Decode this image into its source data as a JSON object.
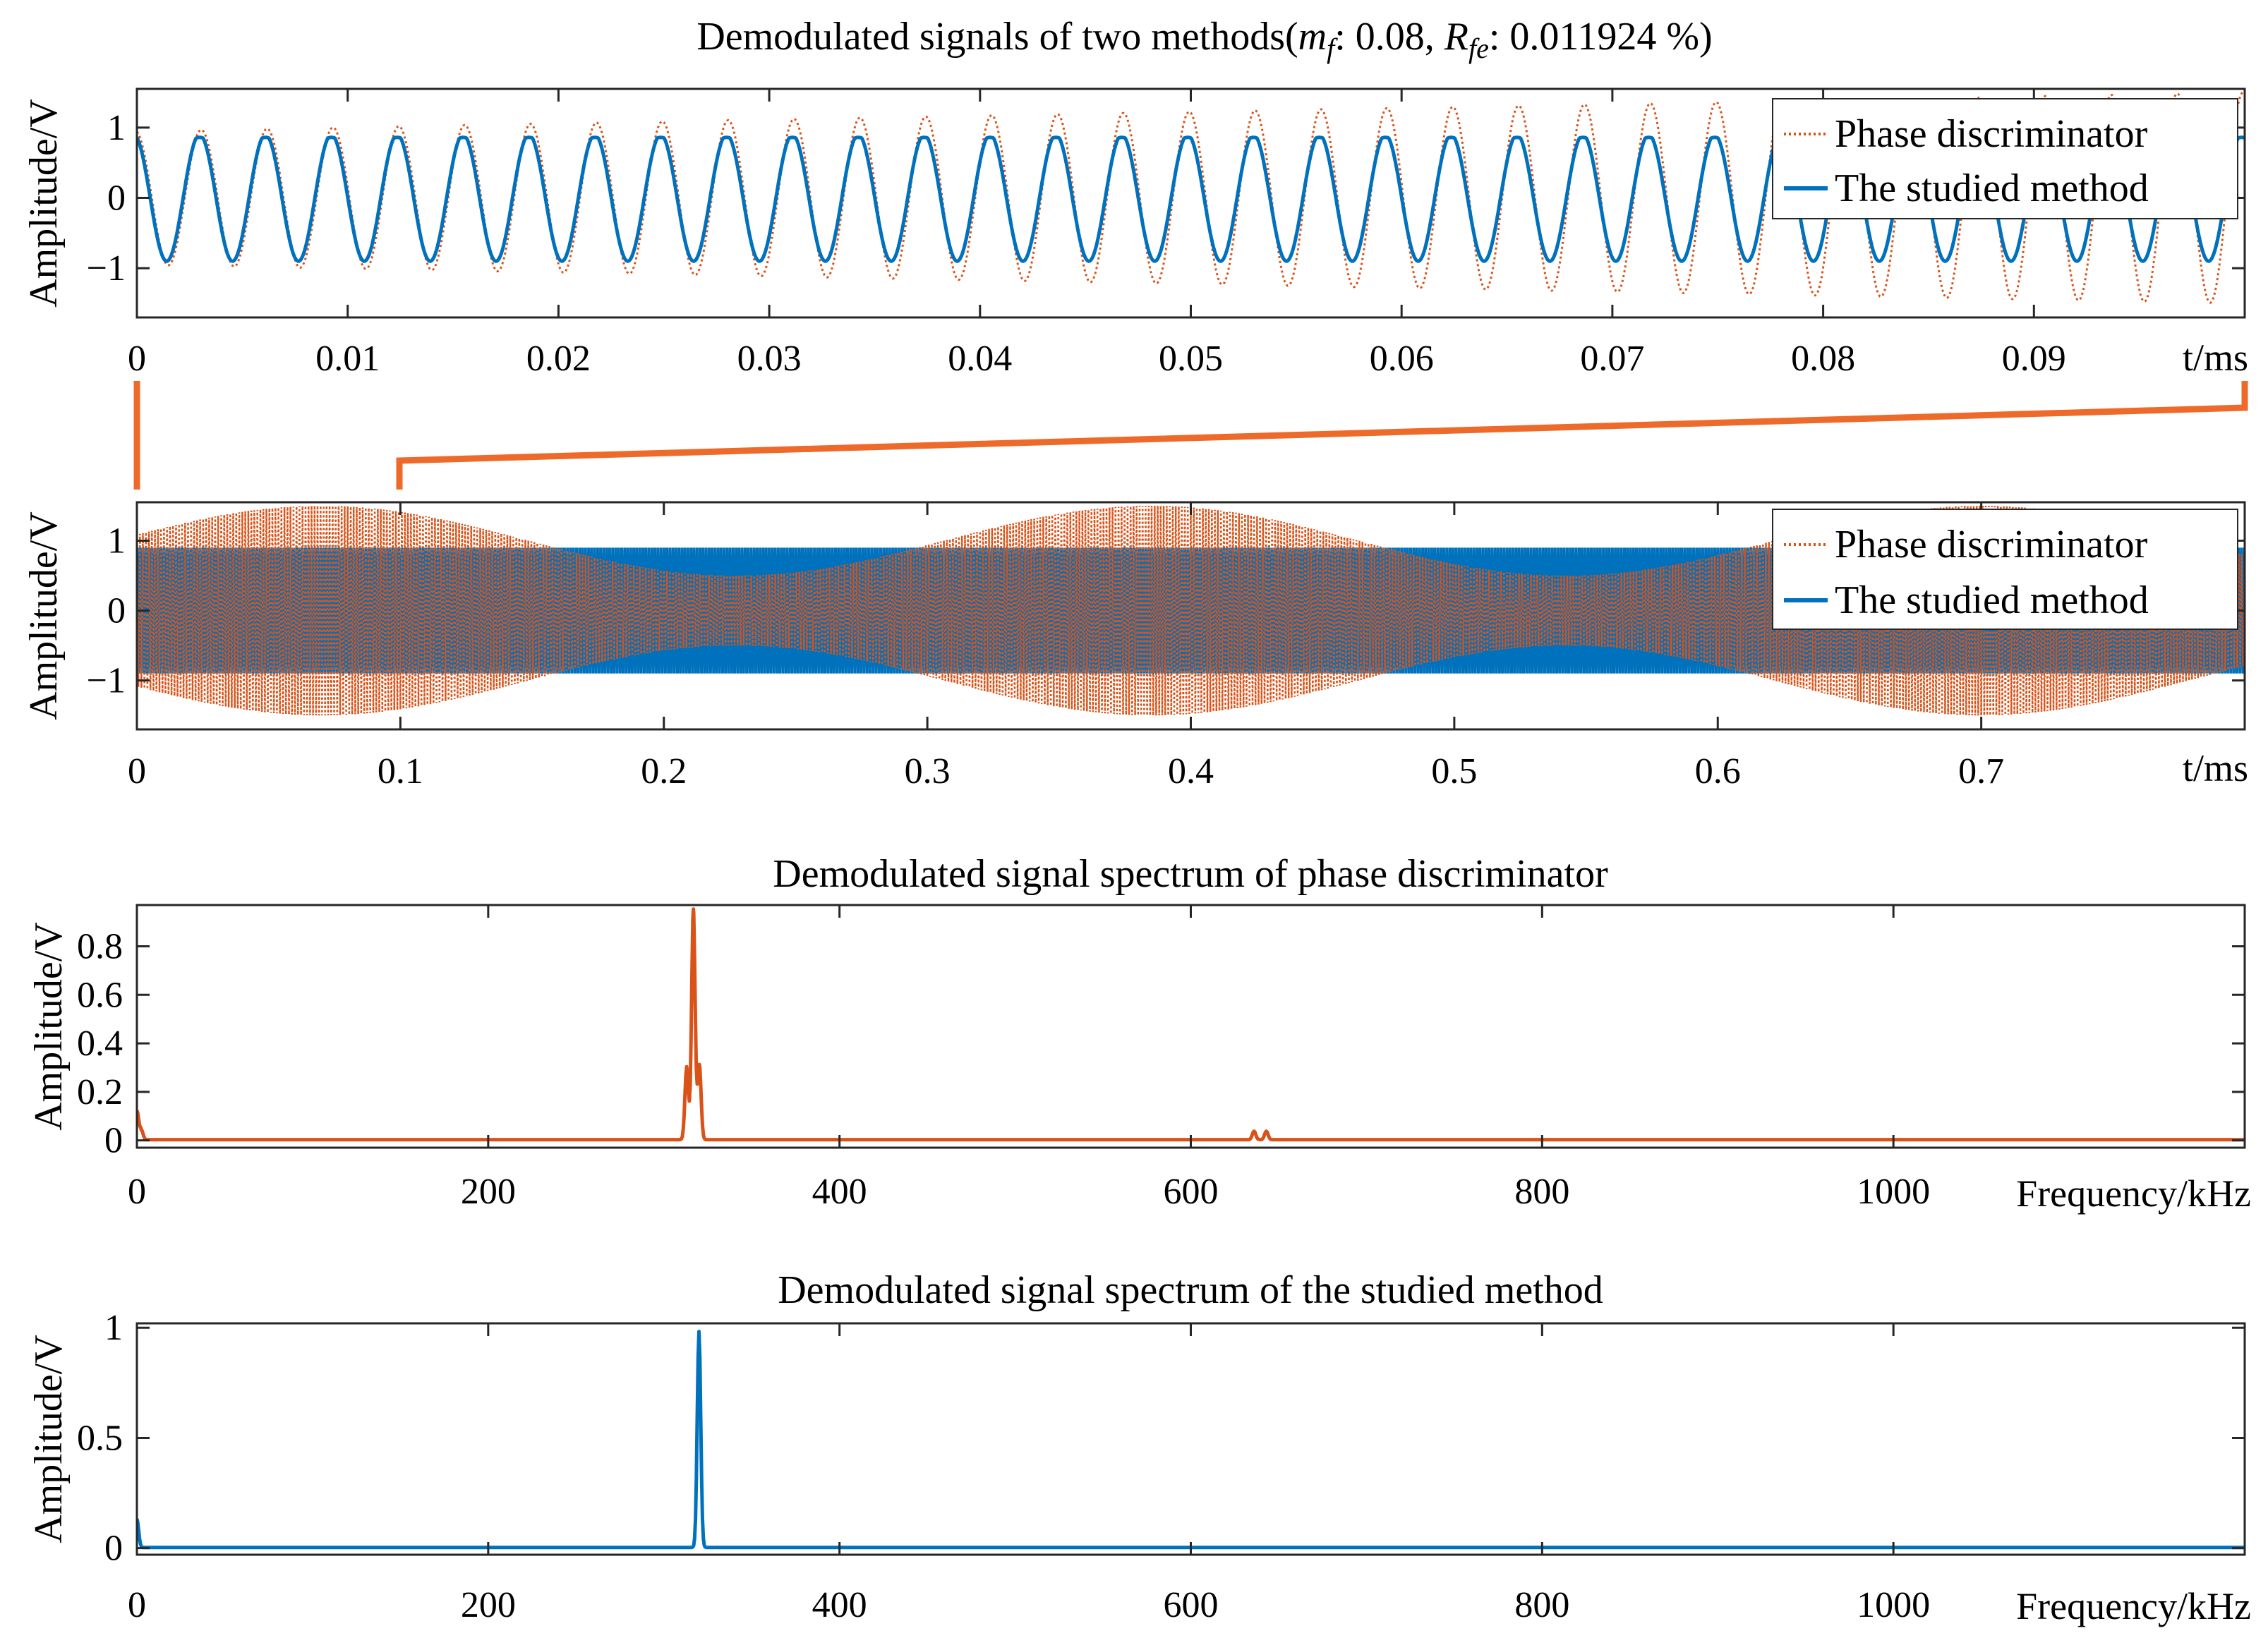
{
  "colors": {
    "phase": "#D95319",
    "studied": "#0072BD",
    "axis": "#262626",
    "connector": "#EE6A2B"
  },
  "chart_data": [
    {
      "id": "zoom",
      "type": "line",
      "title_prefix": "Demodulated signals of two methods(",
      "mf_sym": "m",
      "mf_sub": "f",
      "mf_val": ": 0.08, ",
      "rfe_sym": "R",
      "rfe_sub": "fe",
      "rfe_val": ": 0.011924  %)",
      "ylabel": "Amplitude/V",
      "xunit": "t/ms",
      "xlim": [
        0,
        0.1
      ],
      "ylim": [
        -1.7,
        1.55
      ],
      "xticks": [
        0,
        0.01,
        0.02,
        0.03,
        0.04,
        0.05,
        0.06,
        0.07,
        0.08,
        0.09
      ],
      "xtick_labels": [
        "0",
        "0.01",
        "0.02",
        "0.03",
        "0.04",
        "0.05",
        "0.06",
        "0.07",
        "0.08",
        "0.09"
      ],
      "yticks": [
        -1,
        0,
        1
      ],
      "ytick_labels": [
        "−1",
        "0",
        "1"
      ],
      "legend": [
        "Phase discriminator",
        "The studied method"
      ],
      "series": [
        {
          "name": "Phase discriminator",
          "style": "dotted",
          "carrier_khz": 320,
          "amplitude_base": 1.0,
          "amplitude_dev": 0.5,
          "mod_khz": 3.2,
          "mod_phase_deg": 180
        },
        {
          "name": "The studied method",
          "style": "solid",
          "carrier_khz": 320,
          "amplitude": 0.9,
          "peak_clip": 0.85
        }
      ]
    },
    {
      "id": "full",
      "type": "line",
      "ylabel": "Amplitude/V",
      "xunit": "t/ms",
      "xlim": [
        0,
        0.8
      ],
      "ylim": [
        -1.7,
        1.55
      ],
      "xticks": [
        0,
        0.1,
        0.2,
        0.3,
        0.4,
        0.5,
        0.6,
        0.7
      ],
      "xtick_labels": [
        "0",
        "0.1",
        "0.2",
        "0.3",
        "0.4",
        "0.5",
        "0.6",
        "0.7"
      ],
      "yticks": [
        -1,
        0,
        1
      ],
      "ytick_labels": [
        "−1",
        "0",
        "1"
      ],
      "legend": [
        "Phase discriminator",
        "The studied method"
      ],
      "series": [
        {
          "name": "Phase discriminator",
          "style": "dotted",
          "envelope_min": 0.5,
          "envelope_max": 1.5,
          "envelope_peaks_ms": [
            0.07,
            0.385,
            0.7
          ]
        },
        {
          "name": "The studied method",
          "style": "solid",
          "amplitude": 0.9
        }
      ]
    },
    {
      "id": "spec1",
      "type": "line",
      "title": "Demodulated signal spectrum of phase discriminator",
      "ylabel": "Amplitude/V",
      "xunit": "Frequency/kHz",
      "xlim": [
        0,
        1200
      ],
      "ylim": [
        -0.03,
        0.97
      ],
      "xticks": [
        0,
        200,
        400,
        600,
        800,
        1000
      ],
      "xtick_labels": [
        "0",
        "200",
        "400",
        "600",
        "800",
        "1000"
      ],
      "yticks": [
        0,
        0.2,
        0.4,
        0.6,
        0.8
      ],
      "ytick_labels": [
        "0",
        "0.2",
        "0.4",
        "0.6",
        "0.8"
      ],
      "peaks": [
        {
          "f": 0,
          "a": 0.12
        },
        {
          "f": 2.5,
          "a": 0.04
        },
        {
          "f": 313,
          "a": 0.3
        },
        {
          "f": 316.8,
          "a": 0.95
        },
        {
          "f": 320.2,
          "a": 0.31
        },
        {
          "f": 636,
          "a": 0.035
        },
        {
          "f": 643,
          "a": 0.035
        }
      ],
      "baseline": 0.003
    },
    {
      "id": "spec2",
      "type": "line",
      "title": "Demodulated signal spectrum of the studied method",
      "ylabel": "Amplitude/V",
      "xunit": "Frequency/kHz",
      "xlim": [
        0,
        1200
      ],
      "ylim": [
        -0.03,
        1.02
      ],
      "xticks": [
        0,
        200,
        400,
        600,
        800,
        1000
      ],
      "xtick_labels": [
        "0",
        "200",
        "400",
        "600",
        "800",
        "1000"
      ],
      "yticks": [
        0,
        0.5,
        1
      ],
      "ytick_labels": [
        "0",
        "0.5",
        "1"
      ],
      "peaks": [
        {
          "f": 0,
          "a": 0.13
        },
        {
          "f": 320,
          "a": 0.98
        }
      ],
      "baseline": 0.003
    }
  ]
}
